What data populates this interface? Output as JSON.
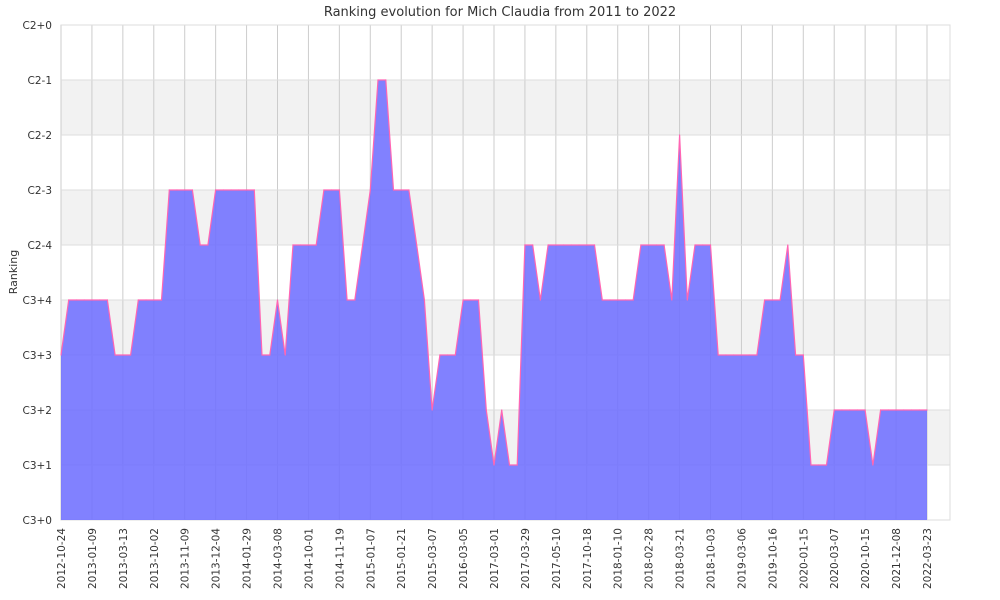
{
  "chart_data": {
    "type": "area",
    "title": "Ranking evolution for Mich Claudia from 2011 to 2022",
    "xlabel": "",
    "ylabel": "Ranking",
    "y_categories": [
      "C3+0",
      "C3+1",
      "C3+2",
      "C3+3",
      "C3+4",
      "C2-4",
      "C2-3",
      "C2-2",
      "C2-1",
      "C2+0"
    ],
    "x_tick_labels": [
      "2012-10-24",
      "2013-01-09",
      "2013-03-13",
      "2013-10-02",
      "2013-11-09",
      "2013-12-04",
      "2014-01-29",
      "2014-03-08",
      "2014-10-01",
      "2014-11-19",
      "2015-01-07",
      "2015-01-21",
      "2015-03-07",
      "2016-03-05",
      "2017-03-01",
      "2017-03-29",
      "2017-05-10",
      "2017-10-18",
      "2018-01-10",
      "2018-02-28",
      "2018-03-21",
      "2018-10-03",
      "2019-03-06",
      "2019-10-16",
      "2020-01-15",
      "2020-03-07",
      "2020-10-15",
      "2021-12-08",
      "2022-03-23"
    ],
    "points_per_tick": 4,
    "values": [
      "C3+3",
      "C3+4",
      "C3+4",
      "C3+4",
      "C3+4",
      "C3+4",
      "C3+4",
      "C3+3",
      "C3+3",
      "C3+3",
      "C3+4",
      "C3+4",
      "C3+4",
      "C3+4",
      "C2-3",
      "C2-3",
      "C2-3",
      "C2-3",
      "C2-4",
      "C2-4",
      "C2-3",
      "C2-3",
      "C2-3",
      "C2-3",
      "C2-3",
      "C2-3",
      "C3+3",
      "C3+3",
      "C3+4",
      "C3+3",
      "C2-4",
      "C2-4",
      "C2-4",
      "C2-4",
      "C2-3",
      "C2-3",
      "C2-3",
      "C3+4",
      "C3+4",
      "C2-4",
      "C2-3",
      "C2-1",
      "C2-1",
      "C2-3",
      "C2-3",
      "C2-3",
      "C2-4",
      "C3+4",
      "C3+2",
      "C3+3",
      "C3+3",
      "C3+3",
      "C3+4",
      "C3+4",
      "C3+4",
      "C3+2",
      "C3+1",
      "C3+2",
      "C3+1",
      "C3+1",
      "C2-4",
      "C2-4",
      "C3+4",
      "C2-4",
      "C2-4",
      "C2-4",
      "C2-4",
      "C2-4",
      "C2-4",
      "C2-4",
      "C3+4",
      "C3+4",
      "C3+4",
      "C3+4",
      "C3+4",
      "C2-4",
      "C2-4",
      "C2-4",
      "C2-4",
      "C3+4",
      "C2-2",
      "C3+4",
      "C2-4",
      "C2-4",
      "C2-4",
      "C3+3",
      "C3+3",
      "C3+3",
      "C3+3",
      "C3+3",
      "C3+3",
      "C3+4",
      "C3+4",
      "C3+4",
      "C2-4",
      "C3+3",
      "C3+3",
      "C3+1",
      "C3+1",
      "C3+1",
      "C3+2",
      "C3+2",
      "C3+2",
      "C3+2",
      "C3+2",
      "C3+1",
      "C3+2",
      "C3+2",
      "C3+2",
      "C3+2",
      "C3+2",
      "C3+2",
      "C3+2"
    ],
    "grid": true,
    "legend": "none",
    "colors": {
      "fill": "#7070ff",
      "stroke": "#ff66b3",
      "band": "#f2f2f2",
      "grid": "#cccccc"
    }
  }
}
